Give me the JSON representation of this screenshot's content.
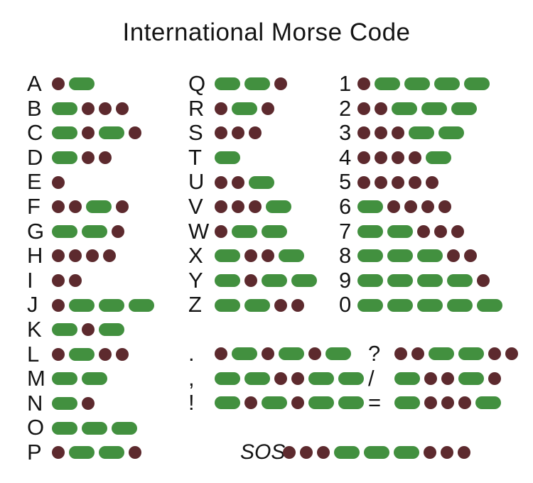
{
  "title": "International Morse Code",
  "colors": {
    "dot": "#5d2a2e",
    "dash": "#42903f"
  },
  "legend": {
    "dot_symbol_name": "dot",
    "dash_symbol_name": "dash"
  },
  "letter_rows_1": [
    {
      "label": "A",
      "code": ".-"
    },
    {
      "label": "B",
      "code": "-..."
    },
    {
      "label": "C",
      "code": "-.-."
    },
    {
      "label": "D",
      "code": "-.."
    },
    {
      "label": "E",
      "code": "."
    },
    {
      "label": "F",
      "code": "..-."
    },
    {
      "label": "G",
      "code": "--."
    },
    {
      "label": "H",
      "code": "...."
    },
    {
      "label": "I",
      "code": ".."
    },
    {
      "label": "J",
      "code": ".---"
    },
    {
      "label": "K",
      "code": "-.-"
    },
    {
      "label": "L",
      "code": ".-.."
    },
    {
      "label": "M",
      "code": "--"
    },
    {
      "label": "N",
      "code": "-."
    },
    {
      "label": "O",
      "code": "---"
    },
    {
      "label": "P",
      "code": ".--."
    }
  ],
  "letter_rows_2": [
    {
      "label": "Q",
      "code": "--."
    },
    {
      "label": "R",
      "code": ".-."
    },
    {
      "label": "S",
      "code": "..."
    },
    {
      "label": "T",
      "code": "-"
    },
    {
      "label": "U",
      "code": "..-"
    },
    {
      "label": "V",
      "code": "...-"
    },
    {
      "label": "W",
      "code": ".--"
    },
    {
      "label": "X",
      "code": "-..-"
    },
    {
      "label": "Y",
      "code": "-.--"
    },
    {
      "label": "Z",
      "code": "--.."
    }
  ],
  "number_rows": [
    {
      "label": "1",
      "code": ".----"
    },
    {
      "label": "2",
      "code": "..---"
    },
    {
      "label": "3",
      "code": "...--"
    },
    {
      "label": "4",
      "code": "....-"
    },
    {
      "label": "5",
      "code": "....."
    },
    {
      "label": "6",
      "code": "-...."
    },
    {
      "label": "7",
      "code": "--..."
    },
    {
      "label": "8",
      "code": "---.."
    },
    {
      "label": "9",
      "code": "----."
    },
    {
      "label": "0",
      "code": "-----"
    }
  ],
  "punctuation_left": [
    {
      "label": ".",
      "code": ".-.-.-"
    },
    {
      "label": ",",
      "code": "--..--"
    },
    {
      "label": "!",
      "code": "-.-.--"
    }
  ],
  "punctuation_right": [
    {
      "label": "?",
      "code": "..--.."
    },
    {
      "label": "/",
      "code": "-..-."
    },
    {
      "label": "=",
      "code": "-...-"
    }
  ],
  "sos_rows": [
    {
      "label": "SOS",
      "code": "...---..."
    }
  ]
}
